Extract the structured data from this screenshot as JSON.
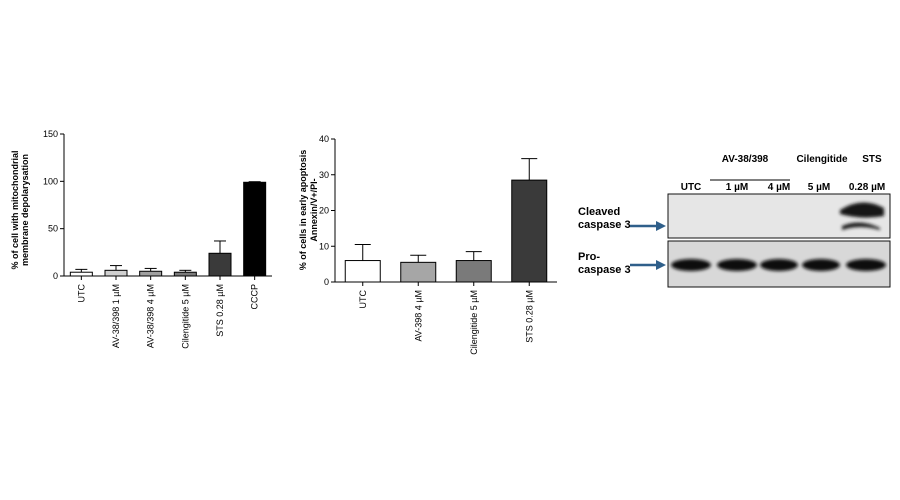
{
  "chart_data": [
    {
      "type": "bar",
      "title": "",
      "xlabel": "",
      "ylabel_line1": "% of cell with mitochondrial",
      "ylabel_line2": "membrane depolarysation",
      "ylim": [
        0,
        150
      ],
      "yticks": [
        0,
        50,
        100,
        150
      ],
      "categories": [
        "UTC",
        "AV-38/398 1 µM",
        "AV-38/398 4 µM",
        "Cilengitide 5 µM",
        "STS 0.28 µM",
        "CCCP"
      ],
      "values": [
        4,
        6,
        5,
        4,
        24,
        99
      ],
      "errors": [
        3,
        5,
        3,
        2,
        13,
        0.6
      ],
      "colors": [
        "#ffffff",
        "#d0d0d0",
        "#a0a0a0",
        "#7a7a7a",
        "#3a3a3a",
        "#000000"
      ]
    },
    {
      "type": "bar",
      "title": "",
      "xlabel": "",
      "ylabel_line1": "% of cells in early apoptosis",
      "ylabel_line2": "Annexin/V+/PI-",
      "ylim": [
        0,
        40
      ],
      "yticks": [
        0,
        10,
        20,
        30,
        40
      ],
      "categories": [
        "UTC",
        "AV-398 4 µM",
        "Cilengitide 5 µM",
        "STS 0.28 µM"
      ],
      "values": [
        6,
        5.5,
        6,
        28.5
      ],
      "errors": [
        4.5,
        2,
        2.5,
        6
      ],
      "colors": [
        "#ffffff",
        "#a6a6a6",
        "#7a7a7a",
        "#3a3a3a"
      ]
    }
  ],
  "blot": {
    "header_group": "AV-38/398",
    "header_cilengitide": "Cilengitide",
    "header_sts": "STS",
    "lanes": [
      "UTC",
      "1 µM",
      "4 µM",
      "5 µM",
      "0.28 µM"
    ],
    "cleaved_line1": "Cleaved",
    "cleaved_line2": "caspase 3",
    "pro_line1": "Pro-",
    "pro_line2": "caspase 3",
    "arrow_color": "#2f5f8a"
  }
}
